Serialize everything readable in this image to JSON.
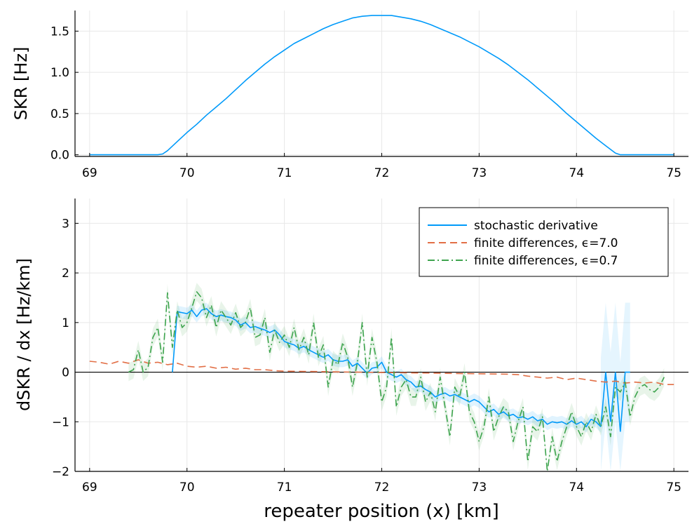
{
  "chart_data": [
    {
      "type": "line",
      "ylabel": "SKR [Hz]",
      "xlabel": "",
      "xlim": [
        68.85,
        75.15
      ],
      "ylim": [
        -0.02,
        1.75
      ],
      "xticks": [
        69,
        70,
        71,
        72,
        73,
        74,
        75
      ],
      "yticks": [
        0.0,
        0.5,
        1.0,
        1.5
      ],
      "ytick_labels": [
        "0.0",
        "0.5",
        "1.0",
        "1.5"
      ],
      "grid": true,
      "series": [
        {
          "name": "SKR",
          "color": "#009AFA",
          "x": [
            69.0,
            69.7,
            69.75,
            69.8,
            69.9,
            70.0,
            70.1,
            70.2,
            70.3,
            70.4,
            70.5,
            70.6,
            70.7,
            70.8,
            70.9,
            71.0,
            71.1,
            71.2,
            71.3,
            71.4,
            71.5,
            71.6,
            71.7,
            71.8,
            71.9,
            72.0,
            72.1,
            72.2,
            72.3,
            72.4,
            72.5,
            72.6,
            72.7,
            72.8,
            72.9,
            73.0,
            73.1,
            73.2,
            73.3,
            73.4,
            73.5,
            73.6,
            73.7,
            73.8,
            73.9,
            74.0,
            74.1,
            74.2,
            74.3,
            74.4,
            74.45,
            74.5,
            75.0
          ],
          "y": [
            0.0,
            0.0,
            0.01,
            0.05,
            0.16,
            0.27,
            0.37,
            0.48,
            0.58,
            0.68,
            0.79,
            0.9,
            1.0,
            1.1,
            1.19,
            1.27,
            1.35,
            1.41,
            1.47,
            1.53,
            1.58,
            1.62,
            1.66,
            1.68,
            1.69,
            1.69,
            1.69,
            1.67,
            1.65,
            1.62,
            1.58,
            1.53,
            1.48,
            1.43,
            1.37,
            1.31,
            1.24,
            1.17,
            1.09,
            1.0,
            0.91,
            0.81,
            0.71,
            0.61,
            0.5,
            0.4,
            0.3,
            0.2,
            0.11,
            0.02,
            0.0,
            0.0,
            0.0
          ]
        }
      ]
    },
    {
      "type": "line",
      "ylabel": "dSKR / dx [Hz/km]",
      "xlabel": "repeater position (x) [km]",
      "xlim": [
        68.85,
        75.15
      ],
      "ylim": [
        -2,
        3.5
      ],
      "xticks": [
        69,
        70,
        71,
        72,
        73,
        74,
        75
      ],
      "yticks": [
        -2,
        -1,
        0,
        1,
        2,
        3
      ],
      "ytick_labels": [
        "−2",
        "−1",
        "0",
        "1",
        "2",
        "3"
      ],
      "grid": true,
      "legend": "top-right",
      "zero_line": 0,
      "series": [
        {
          "name": "stochastic derivative",
          "color": "#009AFA",
          "dash": "solid",
          "band": 0.12,
          "x": [
            69.85,
            69.9,
            70.0,
            70.05,
            70.1,
            70.15,
            70.2,
            70.25,
            70.3,
            70.35,
            70.4,
            70.45,
            70.5,
            70.55,
            70.6,
            70.65,
            70.7,
            70.75,
            70.8,
            70.85,
            70.9,
            70.95,
            71.0,
            71.05,
            71.1,
            71.15,
            71.2,
            71.25,
            71.3,
            71.35,
            71.4,
            71.45,
            71.5,
            71.55,
            71.6,
            71.65,
            71.7,
            71.75,
            71.8,
            71.85,
            71.9,
            71.95,
            72.0,
            72.05,
            72.1,
            72.15,
            72.2,
            72.25,
            72.3,
            72.35,
            72.4,
            72.45,
            72.5,
            72.55,
            72.6,
            72.65,
            72.7,
            72.75,
            72.8,
            72.85,
            72.9,
            72.95,
            73.0,
            73.05,
            73.1,
            73.15,
            73.2,
            73.25,
            73.3,
            73.35,
            73.4,
            73.45,
            73.5,
            73.55,
            73.6,
            73.65,
            73.7,
            73.75,
            73.8,
            73.85,
            73.9,
            73.95,
            74.0,
            74.05,
            74.1,
            74.15,
            74.2,
            74.25
          ],
          "y": [
            0.0,
            1.22,
            1.18,
            1.25,
            1.12,
            1.25,
            1.28,
            1.18,
            1.12,
            1.15,
            1.12,
            1.1,
            1.05,
            0.95,
            1.0,
            0.9,
            0.92,
            0.88,
            0.85,
            0.8,
            0.85,
            0.75,
            0.62,
            0.58,
            0.55,
            0.48,
            0.52,
            0.45,
            0.4,
            0.35,
            0.3,
            0.35,
            0.25,
            0.22,
            0.22,
            0.25,
            0.12,
            0.18,
            0.08,
            -0.02,
            0.08,
            0.1,
            0.2,
            0.0,
            -0.05,
            -0.1,
            -0.05,
            -0.15,
            -0.2,
            -0.3,
            -0.28,
            -0.35,
            -0.4,
            -0.5,
            -0.45,
            -0.42,
            -0.48,
            -0.45,
            -0.5,
            -0.55,
            -0.6,
            -0.55,
            -0.6,
            -0.7,
            -0.8,
            -0.75,
            -0.85,
            -0.8,
            -0.88,
            -0.85,
            -0.92,
            -0.9,
            -0.95,
            -0.9,
            -0.98,
            -0.95,
            -1.05,
            -1.0,
            -1.02,
            -1.0,
            -1.05,
            -0.98,
            -1.05,
            -1.0,
            -1.1,
            -0.95,
            -1.0,
            -1.1
          ],
          "noisy_x": [
            74.25,
            74.3,
            74.35,
            74.4,
            74.45,
            74.5,
            74.55
          ],
          "noisy_y": [
            -1.1,
            0.0,
            -1.0,
            0.0,
            -1.2,
            0.0,
            0.0
          ]
        },
        {
          "name": "finite differences, ϵ=7.0",
          "color": "#E26F46",
          "dash": "dashed",
          "x": [
            69.0,
            69.1,
            69.2,
            69.3,
            69.4,
            69.5,
            69.6,
            69.7,
            69.8,
            69.9,
            70.0,
            70.1,
            70.2,
            70.3,
            70.4,
            70.5,
            70.6,
            70.7,
            70.8,
            70.9,
            71.0,
            73.3,
            73.4,
            73.5,
            73.6,
            73.7,
            73.8,
            73.9,
            74.0,
            74.1,
            74.2,
            74.3,
            74.4,
            74.5,
            74.6,
            74.7,
            74.8,
            74.9,
            75.0
          ],
          "y": [
            0.22,
            0.2,
            0.16,
            0.22,
            0.18,
            0.25,
            0.18,
            0.2,
            0.15,
            0.18,
            0.12,
            0.1,
            0.12,
            0.08,
            0.1,
            0.06,
            0.08,
            0.05,
            0.05,
            0.03,
            0.02,
            -0.04,
            -0.05,
            -0.08,
            -0.1,
            -0.12,
            -0.1,
            -0.15,
            -0.12,
            -0.15,
            -0.18,
            -0.2,
            -0.18,
            -0.22,
            -0.2,
            -0.22,
            -0.2,
            -0.25,
            -0.25
          ]
        },
        {
          "name": "finite differences, ϵ=0.7",
          "color": "#3EA44E",
          "dash": "dashdot",
          "band": 0.18,
          "x": [
            69.4,
            69.45,
            69.5,
            69.55,
            69.6,
            69.65,
            69.7,
            69.75,
            69.8,
            69.85,
            69.9,
            69.95,
            70.0,
            70.05,
            70.1,
            70.15,
            70.2,
            70.25,
            70.3,
            70.35,
            70.4,
            70.45,
            70.5,
            70.55,
            70.6,
            70.65,
            70.7,
            70.75,
            70.8,
            70.85,
            70.9,
            70.95,
            71.0,
            71.05,
            71.1,
            71.15,
            71.2,
            71.25,
            71.3,
            71.35,
            71.4,
            71.45,
            71.5,
            71.55,
            71.6,
            71.65,
            71.7,
            71.75,
            71.8,
            71.85,
            71.9,
            71.95,
            72.0,
            72.05,
            72.1,
            72.15,
            72.2,
            72.25,
            72.3,
            72.35,
            72.4,
            72.45,
            72.5,
            72.55,
            72.6,
            72.65,
            72.7,
            72.75,
            72.8,
            72.85,
            72.9,
            72.95,
            73.0,
            73.05,
            73.1,
            73.15,
            73.2,
            73.25,
            73.3,
            73.35,
            73.4,
            73.45,
            73.5,
            73.55,
            73.6,
            73.65,
            73.7,
            73.75,
            73.8,
            73.85,
            73.9,
            73.95,
            74.0,
            74.05,
            74.1,
            74.15,
            74.2,
            74.25,
            74.3,
            74.35,
            74.4,
            74.45,
            74.5,
            74.55,
            74.6,
            74.65,
            74.7,
            74.75,
            74.8,
            74.85,
            74.9
          ],
          "y": [
            0.0,
            0.05,
            0.45,
            0.0,
            0.1,
            0.7,
            0.9,
            0.2,
            1.6,
            0.5,
            1.25,
            0.9,
            1.0,
            1.3,
            1.62,
            1.5,
            1.1,
            1.35,
            0.9,
            1.25,
            1.1,
            0.95,
            1.2,
            0.9,
            1.0,
            1.3,
            0.7,
            0.75,
            1.1,
            0.4,
            0.85,
            0.6,
            0.75,
            0.5,
            0.9,
            0.45,
            0.7,
            0.35,
            1.0,
            0.3,
            0.55,
            -0.3,
            0.25,
            0.15,
            0.6,
            0.3,
            -0.3,
            0.2,
            1.0,
            -0.1,
            0.7,
            0.2,
            -0.6,
            -0.3,
            0.7,
            -0.7,
            -0.3,
            -0.15,
            -0.5,
            -0.5,
            -0.1,
            -0.6,
            -0.4,
            -0.8,
            -0.1,
            -0.7,
            -1.3,
            -0.3,
            -0.5,
            0.0,
            -0.8,
            -1.0,
            -1.4,
            -1.1,
            -0.5,
            -1.2,
            -0.9,
            -0.7,
            -0.8,
            -1.4,
            -1.0,
            -0.7,
            -1.8,
            -1.1,
            -1.2,
            -0.9,
            -2.1,
            -1.3,
            -1.8,
            -1.4,
            -1.1,
            -0.8,
            -1.1,
            -1.3,
            -1.0,
            -1.2,
            -0.85,
            -1.1,
            -0.7,
            -1.3,
            -0.3,
            -0.4,
            -0.2,
            -0.9,
            -0.5,
            -0.3,
            -0.25,
            -0.35,
            -0.4,
            -0.3,
            -0.1
          ]
        }
      ]
    }
  ]
}
